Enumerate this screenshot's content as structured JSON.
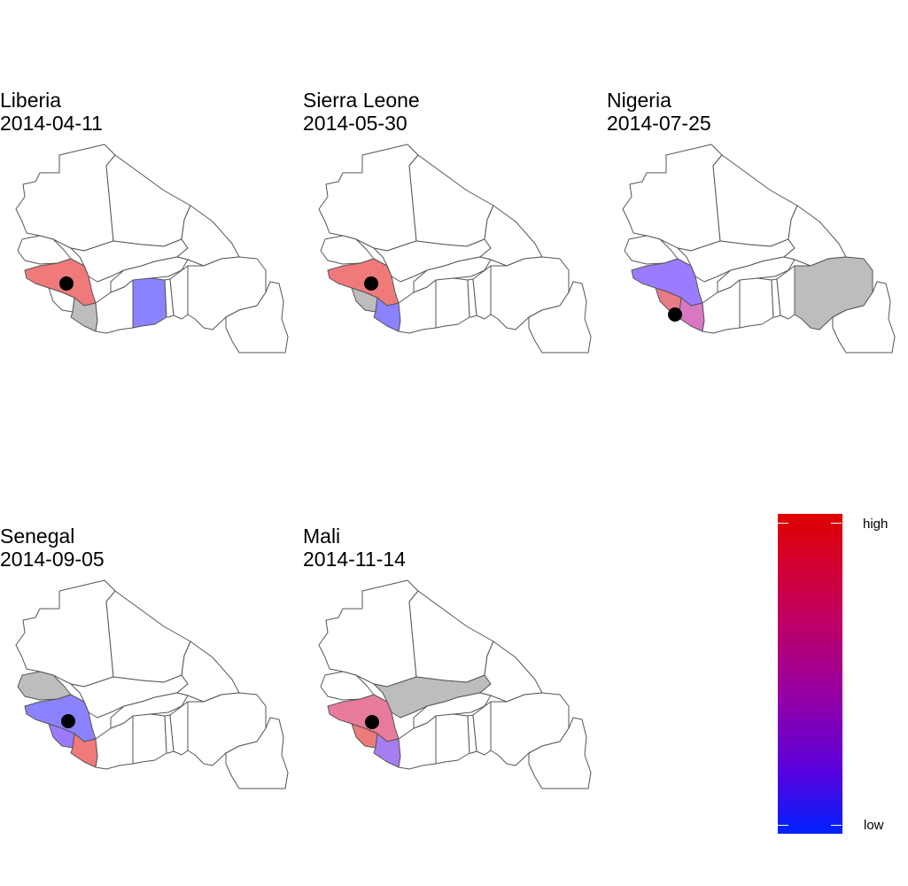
{
  "panels": [
    {
      "country": "Liberia",
      "date": "2014-04-11",
      "fills": {
        "guinea": "#f07a7a",
        "sierra": "#ffffff",
        "liberia": "#bdbdbd",
        "ivory": "#ffffff",
        "ghana": "#8a82ff",
        "senegal": "#ffffff",
        "mali": "#ffffff",
        "nigeria": "#ffffff"
      }
    },
    {
      "country": "Sierra Leone",
      "date": "2014-05-30",
      "fills": {
        "guinea": "#f07a7a",
        "sierra": "#bdbdbd",
        "liberia": "#8a82ff",
        "ivory": "#ffffff",
        "ghana": "#ffffff",
        "senegal": "#ffffff",
        "mali": "#ffffff",
        "nigeria": "#ffffff"
      }
    },
    {
      "country": "Nigeria",
      "date": "2014-07-25",
      "fills": {
        "guinea": "#9b7cff",
        "sierra": "#e87b86",
        "liberia": "#d977c2",
        "ivory": "#ffffff",
        "ghana": "#ffffff",
        "senegal": "#ffffff",
        "mali": "#ffffff",
        "nigeria": "#bdbdbd"
      }
    },
    {
      "country": "Senegal",
      "date": "2014-09-05",
      "fills": {
        "guinea": "#8a82ff",
        "sierra": "#9b7cff",
        "liberia": "#f07a7a",
        "ivory": "#ffffff",
        "ghana": "#ffffff",
        "senegal": "#bdbdbd",
        "mali": "#ffffff",
        "nigeria": "#ffffff"
      }
    },
    {
      "country": "Mali",
      "date": "2014-11-14",
      "fills": {
        "guinea": "#e87b9c",
        "sierra": "#ee7a7a",
        "liberia": "#a77ef0",
        "ivory": "#ffffff",
        "ghana": "#ffffff",
        "senegal": "#ffffff",
        "mali": "#bdbdbd",
        "nigeria": "#ffffff"
      }
    }
  ],
  "legend": {
    "high": "high",
    "low": "low",
    "high_color": "#e00000",
    "low_color": "#0022ff"
  }
}
